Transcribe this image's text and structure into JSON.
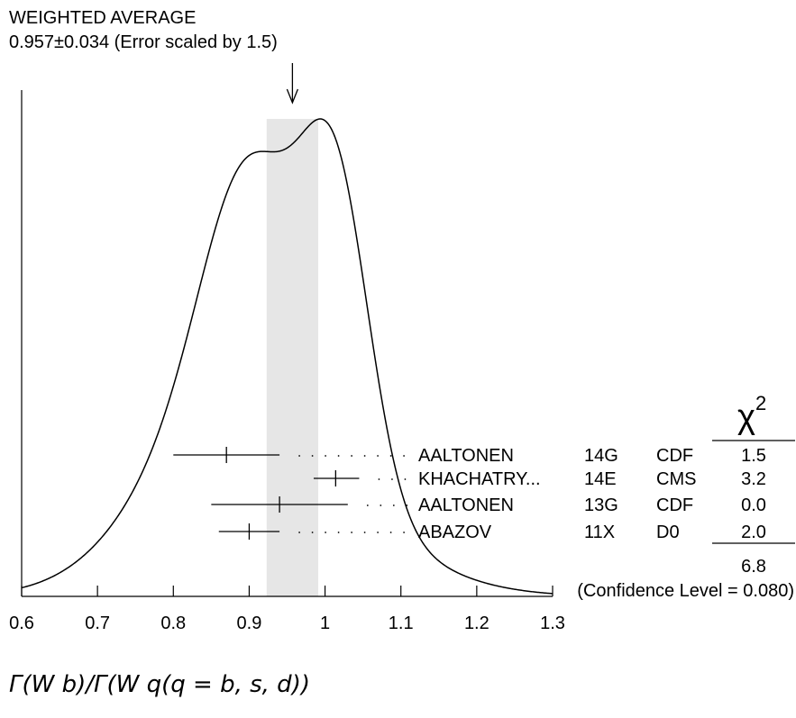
{
  "chart_data": {
    "type": "ideogram",
    "title": "WEIGHTED AVERAGE",
    "subtitle": "0.957±0.034 (Error scaled by 1.5)",
    "weighted_average": {
      "value": 0.957,
      "error": 0.034,
      "scale_factor": 1.5
    },
    "xlabel": "Γ(W b)/Γ(W q(q = b, s, d))",
    "xlim": [
      0.6,
      1.3
    ],
    "xticks": [
      0.6,
      0.7,
      0.8,
      0.9,
      1.0,
      1.1,
      1.2,
      1.3
    ],
    "xtick_labels": [
      "0.6",
      "0.7",
      "0.8",
      "0.9",
      "1",
      "1.1",
      "1.2",
      "1.3"
    ],
    "chi2_header": "χ",
    "chi2_header_sup": "2",
    "measurements": [
      {
        "author": "AALTONEN",
        "year": "14G",
        "experiment": "CDF",
        "value": 0.87,
        "low": 0.8,
        "high": 0.94,
        "chi2": "1.5"
      },
      {
        "author": "KHACHATRY...",
        "year": "14E",
        "experiment": "CMS",
        "value": 1.014,
        "low": 0.985,
        "high": 1.045,
        "chi2": "3.2"
      },
      {
        "author": "AALTONEN",
        "year": "13G",
        "experiment": "CDF",
        "value": 0.94,
        "low": 0.85,
        "high": 1.03,
        "chi2": "0.0"
      },
      {
        "author": "ABAZOV",
        "year": "11X",
        "experiment": "D0",
        "value": 0.9,
        "low": 0.86,
        "high": 0.94,
        "chi2": "2.0"
      }
    ],
    "chi2_total": "6.8",
    "confidence_level": "(Confidence Level = 0.080)",
    "band_color": "#e6e6e6"
  }
}
